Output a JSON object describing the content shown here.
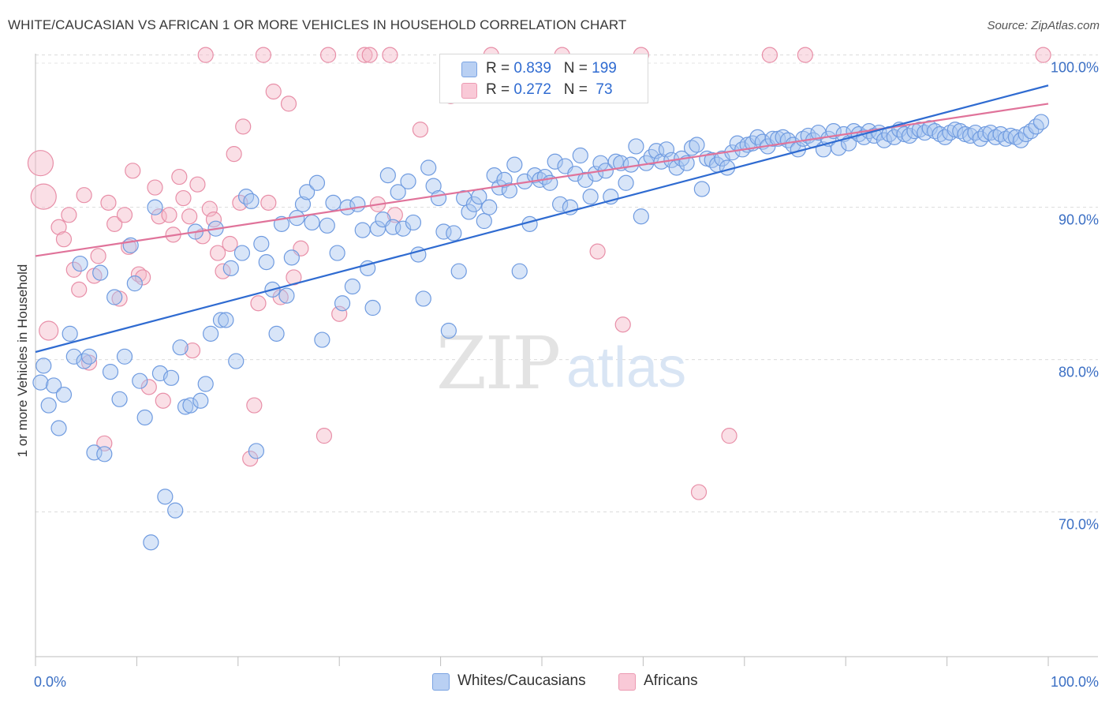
{
  "header": {
    "title": "WHITE/CAUCASIAN VS AFRICAN 1 OR MORE VEHICLES IN HOUSEHOLD CORRELATION CHART",
    "source": "Source: ZipAtlas.com"
  },
  "watermark": {
    "zip": "ZIP",
    "atlas": "atlas"
  },
  "legend": {
    "rows": [
      {
        "r_label": "R = ",
        "r_value": "0.839",
        "n_label": "N = ",
        "n_value": "199",
        "color": "#a9c5f0"
      },
      {
        "r_label": "R = ",
        "r_value": "0.272",
        "n_label": "N = ",
        "n_value": " 73",
        "color": "#f5b7c8"
      }
    ]
  },
  "bottom_legend": {
    "items": [
      {
        "label": "Whites/Caucasians",
        "color": "#a9c5f0"
      },
      {
        "label": "Africans",
        "color": "#f5b7c8"
      }
    ]
  },
  "chart_data": {
    "type": "scatter",
    "title": "WHITE/CAUCASIAN VS AFRICAN 1 OR MORE VEHICLES IN HOUSEHOLD CORRELATION CHART",
    "xlabel": "",
    "ylabel": "1 or more Vehicles in Household",
    "xlim": [
      0,
      100
    ],
    "ylim": [
      60.5,
      100.5
    ],
    "x_tick_labels": [
      "0.0%",
      "100.0%"
    ],
    "y_ticks": [
      70,
      80,
      90,
      100
    ],
    "y_tick_labels": [
      "70.0%",
      "80.0%",
      "90.0%",
      "100.0%"
    ],
    "grid": "horizontal dashed",
    "legend_position": "top-center",
    "series": [
      {
        "name": "Whites/Caucasians",
        "color": "#a9c5f0",
        "stroke": "#6f9be0",
        "trend_color": "#2f6bd1",
        "r": 0.839,
        "n": 199,
        "trend": {
          "x": [
            0,
            100
          ],
          "y": [
            80.5,
            98.0
          ]
        },
        "points": [
          [
            0.5,
            78.5
          ],
          [
            0.8,
            79.6
          ],
          [
            1.3,
            77.0
          ],
          [
            1.8,
            78.3
          ],
          [
            2.3,
            75.5
          ],
          [
            2.8,
            77.7
          ],
          [
            3.4,
            81.7
          ],
          [
            3.8,
            80.2
          ],
          [
            4.4,
            86.3
          ],
          [
            4.8,
            79.9
          ],
          [
            5.3,
            80.2
          ],
          [
            5.8,
            73.9
          ],
          [
            6.4,
            85.7
          ],
          [
            6.8,
            73.8
          ],
          [
            7.4,
            79.2
          ],
          [
            7.8,
            84.1
          ],
          [
            8.3,
            77.4
          ],
          [
            8.8,
            80.2
          ],
          [
            9.4,
            87.5
          ],
          [
            9.8,
            85.0
          ],
          [
            10.3,
            78.6
          ],
          [
            10.8,
            76.2
          ],
          [
            11.4,
            68.0
          ],
          [
            11.8,
            90.0
          ],
          [
            12.3,
            79.1
          ],
          [
            12.8,
            71.0
          ],
          [
            13.4,
            78.8
          ],
          [
            13.8,
            70.1
          ],
          [
            14.3,
            80.8
          ],
          [
            14.8,
            76.9
          ],
          [
            15.3,
            77.0
          ],
          [
            15.8,
            88.4
          ],
          [
            16.3,
            77.3
          ],
          [
            16.8,
            78.4
          ],
          [
            17.3,
            81.7
          ],
          [
            17.8,
            88.6
          ],
          [
            18.3,
            82.6
          ],
          [
            18.8,
            82.6
          ],
          [
            19.3,
            86.0
          ],
          [
            19.8,
            79.9
          ],
          [
            20.4,
            87.0
          ],
          [
            20.8,
            90.7
          ],
          [
            21.3,
            90.4
          ],
          [
            21.8,
            74.0
          ],
          [
            22.3,
            87.6
          ],
          [
            22.8,
            86.4
          ],
          [
            23.4,
            84.6
          ],
          [
            23.8,
            81.7
          ],
          [
            24.3,
            88.9
          ],
          [
            24.8,
            84.2
          ],
          [
            25.3,
            86.7
          ],
          [
            25.8,
            89.3
          ],
          [
            26.4,
            90.2
          ],
          [
            26.8,
            91.0
          ],
          [
            27.3,
            89.0
          ],
          [
            27.8,
            91.6
          ],
          [
            28.3,
            81.3
          ],
          [
            28.8,
            88.8
          ],
          [
            29.4,
            90.3
          ],
          [
            29.8,
            87.0
          ],
          [
            30.3,
            83.7
          ],
          [
            30.8,
            90.0
          ],
          [
            31.3,
            84.8
          ],
          [
            31.8,
            90.2
          ],
          [
            32.3,
            88.5
          ],
          [
            32.8,
            86.0
          ],
          [
            33.3,
            83.4
          ],
          [
            33.8,
            88.6
          ],
          [
            34.3,
            89.2
          ],
          [
            34.8,
            92.1
          ],
          [
            35.3,
            88.7
          ],
          [
            35.8,
            91.0
          ],
          [
            36.3,
            88.6
          ],
          [
            36.8,
            91.7
          ],
          [
            37.3,
            89.0
          ],
          [
            37.8,
            86.9
          ],
          [
            38.3,
            84.0
          ],
          [
            38.8,
            92.6
          ],
          [
            39.3,
            91.4
          ],
          [
            39.8,
            90.6
          ],
          [
            40.3,
            88.4
          ],
          [
            40.8,
            81.9
          ],
          [
            41.3,
            88.3
          ],
          [
            41.8,
            85.8
          ],
          [
            42.3,
            90.6
          ],
          [
            42.8,
            89.7
          ],
          [
            43.3,
            90.2
          ],
          [
            43.8,
            90.7
          ],
          [
            44.3,
            89.1
          ],
          [
            44.8,
            90.0
          ],
          [
            45.3,
            92.1
          ],
          [
            45.8,
            91.3
          ],
          [
            46.3,
            91.8
          ],
          [
            46.8,
            91.1
          ],
          [
            47.3,
            92.8
          ],
          [
            47.8,
            85.8
          ],
          [
            48.3,
            91.7
          ],
          [
            48.8,
            88.9
          ],
          [
            49.3,
            92.1
          ],
          [
            49.8,
            91.8
          ],
          [
            50.3,
            92.0
          ],
          [
            50.8,
            91.6
          ],
          [
            51.3,
            93.0
          ],
          [
            51.8,
            90.2
          ],
          [
            52.3,
            92.7
          ],
          [
            52.8,
            90.0
          ],
          [
            53.3,
            92.2
          ],
          [
            53.8,
            93.4
          ],
          [
            54.3,
            91.8
          ],
          [
            54.8,
            90.7
          ],
          [
            55.3,
            92.2
          ],
          [
            55.8,
            92.9
          ],
          [
            56.3,
            92.4
          ],
          [
            56.8,
            90.7
          ],
          [
            57.3,
            93.0
          ],
          [
            57.8,
            92.9
          ],
          [
            58.3,
            91.6
          ],
          [
            58.8,
            92.8
          ],
          [
            59.3,
            94.0
          ],
          [
            59.8,
            89.4
          ],
          [
            60.3,
            92.9
          ],
          [
            60.8,
            93.3
          ],
          [
            61.3,
            93.7
          ],
          [
            61.8,
            93.0
          ],
          [
            62.3,
            93.8
          ],
          [
            62.8,
            93.1
          ],
          [
            63.3,
            92.6
          ],
          [
            63.8,
            93.2
          ],
          [
            64.3,
            92.9
          ],
          [
            64.8,
            93.9
          ],
          [
            65.3,
            94.1
          ],
          [
            65.8,
            91.2
          ],
          [
            66.3,
            93.2
          ],
          [
            66.8,
            93.1
          ],
          [
            67.3,
            92.8
          ],
          [
            67.8,
            93.2
          ],
          [
            68.3,
            92.6
          ],
          [
            68.8,
            93.6
          ],
          [
            69.3,
            94.2
          ],
          [
            69.8,
            93.8
          ],
          [
            70.3,
            94.1
          ],
          [
            70.8,
            94.2
          ],
          [
            71.3,
            94.6
          ],
          [
            71.8,
            94.3
          ],
          [
            72.3,
            94.0
          ],
          [
            72.8,
            94.5
          ],
          [
            73.3,
            94.5
          ],
          [
            73.8,
            94.6
          ],
          [
            74.3,
            94.4
          ],
          [
            74.8,
            94.1
          ],
          [
            75.3,
            93.8
          ],
          [
            75.8,
            94.5
          ],
          [
            76.3,
            94.7
          ],
          [
            76.8,
            94.4
          ],
          [
            77.3,
            94.9
          ],
          [
            77.8,
            93.8
          ],
          [
            78.3,
            94.5
          ],
          [
            78.8,
            95.0
          ],
          [
            79.3,
            93.9
          ],
          [
            79.8,
            94.8
          ],
          [
            80.3,
            94.2
          ],
          [
            80.8,
            95.0
          ],
          [
            81.3,
            94.8
          ],
          [
            81.8,
            94.6
          ],
          [
            82.3,
            95.0
          ],
          [
            82.8,
            94.7
          ],
          [
            83.3,
            94.9
          ],
          [
            83.8,
            94.4
          ],
          [
            84.3,
            94.8
          ],
          [
            84.8,
            94.6
          ],
          [
            85.3,
            95.1
          ],
          [
            85.8,
            94.8
          ],
          [
            86.3,
            94.7
          ],
          [
            86.8,
            95.0
          ],
          [
            87.3,
            95.1
          ],
          [
            87.8,
            94.9
          ],
          [
            88.3,
            95.2
          ],
          [
            88.8,
            95.0
          ],
          [
            89.3,
            94.8
          ],
          [
            89.8,
            94.6
          ],
          [
            90.3,
            94.9
          ],
          [
            90.8,
            95.1
          ],
          [
            91.3,
            95.0
          ],
          [
            91.8,
            94.8
          ],
          [
            92.3,
            94.7
          ],
          [
            92.8,
            94.9
          ],
          [
            93.3,
            94.5
          ],
          [
            93.8,
            94.8
          ],
          [
            94.3,
            94.9
          ],
          [
            94.8,
            94.6
          ],
          [
            95.3,
            94.8
          ],
          [
            95.8,
            94.5
          ],
          [
            96.3,
            94.7
          ],
          [
            96.8,
            94.6
          ],
          [
            97.3,
            94.4
          ],
          [
            97.8,
            94.8
          ],
          [
            98.3,
            95.0
          ],
          [
            98.8,
            95.3
          ],
          [
            99.3,
            95.6
          ]
        ]
      },
      {
        "name": "Africans",
        "color": "#f5b7c8",
        "stroke": "#e88fa8",
        "trend_color": "#e0739a",
        "r": 0.272,
        "n": 73,
        "trend": {
          "x": [
            0,
            100
          ],
          "y": [
            86.8,
            96.8
          ]
        },
        "points": [
          [
            0.5,
            92.9
          ],
          [
            0.8,
            90.7
          ],
          [
            1.3,
            81.9
          ],
          [
            2.3,
            88.7
          ],
          [
            2.8,
            87.9
          ],
          [
            3.3,
            89.5
          ],
          [
            3.8,
            85.9
          ],
          [
            4.3,
            84.6
          ],
          [
            4.8,
            90.8
          ],
          [
            5.3,
            79.8
          ],
          [
            5.8,
            85.5
          ],
          [
            6.2,
            86.8
          ],
          [
            6.8,
            74.5
          ],
          [
            7.2,
            90.3
          ],
          [
            7.8,
            88.9
          ],
          [
            8.3,
            84.0
          ],
          [
            8.8,
            89.5
          ],
          [
            9.2,
            87.4
          ],
          [
            9.6,
            92.4
          ],
          [
            10.2,
            85.6
          ],
          [
            10.6,
            85.4
          ],
          [
            11.2,
            78.2
          ],
          [
            11.8,
            91.3
          ],
          [
            12.2,
            89.4
          ],
          [
            12.6,
            77.3
          ],
          [
            13.2,
            89.5
          ],
          [
            13.6,
            88.2
          ],
          [
            14.2,
            92.0
          ],
          [
            14.6,
            90.6
          ],
          [
            15.2,
            89.4
          ],
          [
            15.5,
            80.6
          ],
          [
            16.0,
            91.5
          ],
          [
            16.5,
            88.1
          ],
          [
            16.8,
            100.0
          ],
          [
            17.2,
            89.9
          ],
          [
            17.6,
            89.2
          ],
          [
            18.0,
            87.0
          ],
          [
            18.5,
            85.8
          ],
          [
            19.2,
            87.6
          ],
          [
            19.6,
            93.5
          ],
          [
            20.2,
            90.3
          ],
          [
            20.5,
            95.3
          ],
          [
            21.2,
            73.5
          ],
          [
            21.6,
            77.0
          ],
          [
            22.0,
            83.7
          ],
          [
            22.5,
            100.0
          ],
          [
            23.0,
            90.3
          ],
          [
            23.5,
            97.6
          ],
          [
            24.2,
            84.1
          ],
          [
            25.0,
            96.8
          ],
          [
            25.5,
            85.4
          ],
          [
            26.2,
            87.3
          ],
          [
            28.5,
            75.0
          ],
          [
            28.9,
            100.0
          ],
          [
            30.0,
            83.0
          ],
          [
            32.5,
            100.0
          ],
          [
            33.0,
            100.0
          ],
          [
            33.8,
            90.2
          ],
          [
            35.0,
            100.0
          ],
          [
            35.5,
            89.5
          ],
          [
            38.0,
            95.1
          ],
          [
            41.0,
            97.3
          ],
          [
            41.5,
            97.7
          ],
          [
            45.0,
            100.0
          ],
          [
            52.0,
            100.0
          ],
          [
            55.5,
            87.1
          ],
          [
            58.0,
            82.3
          ],
          [
            59.8,
            100.0
          ],
          [
            65.5,
            71.3
          ],
          [
            68.5,
            75.0
          ],
          [
            72.5,
            100.0
          ],
          [
            76.0,
            100.0
          ],
          [
            99.5,
            100.0
          ]
        ]
      }
    ]
  }
}
